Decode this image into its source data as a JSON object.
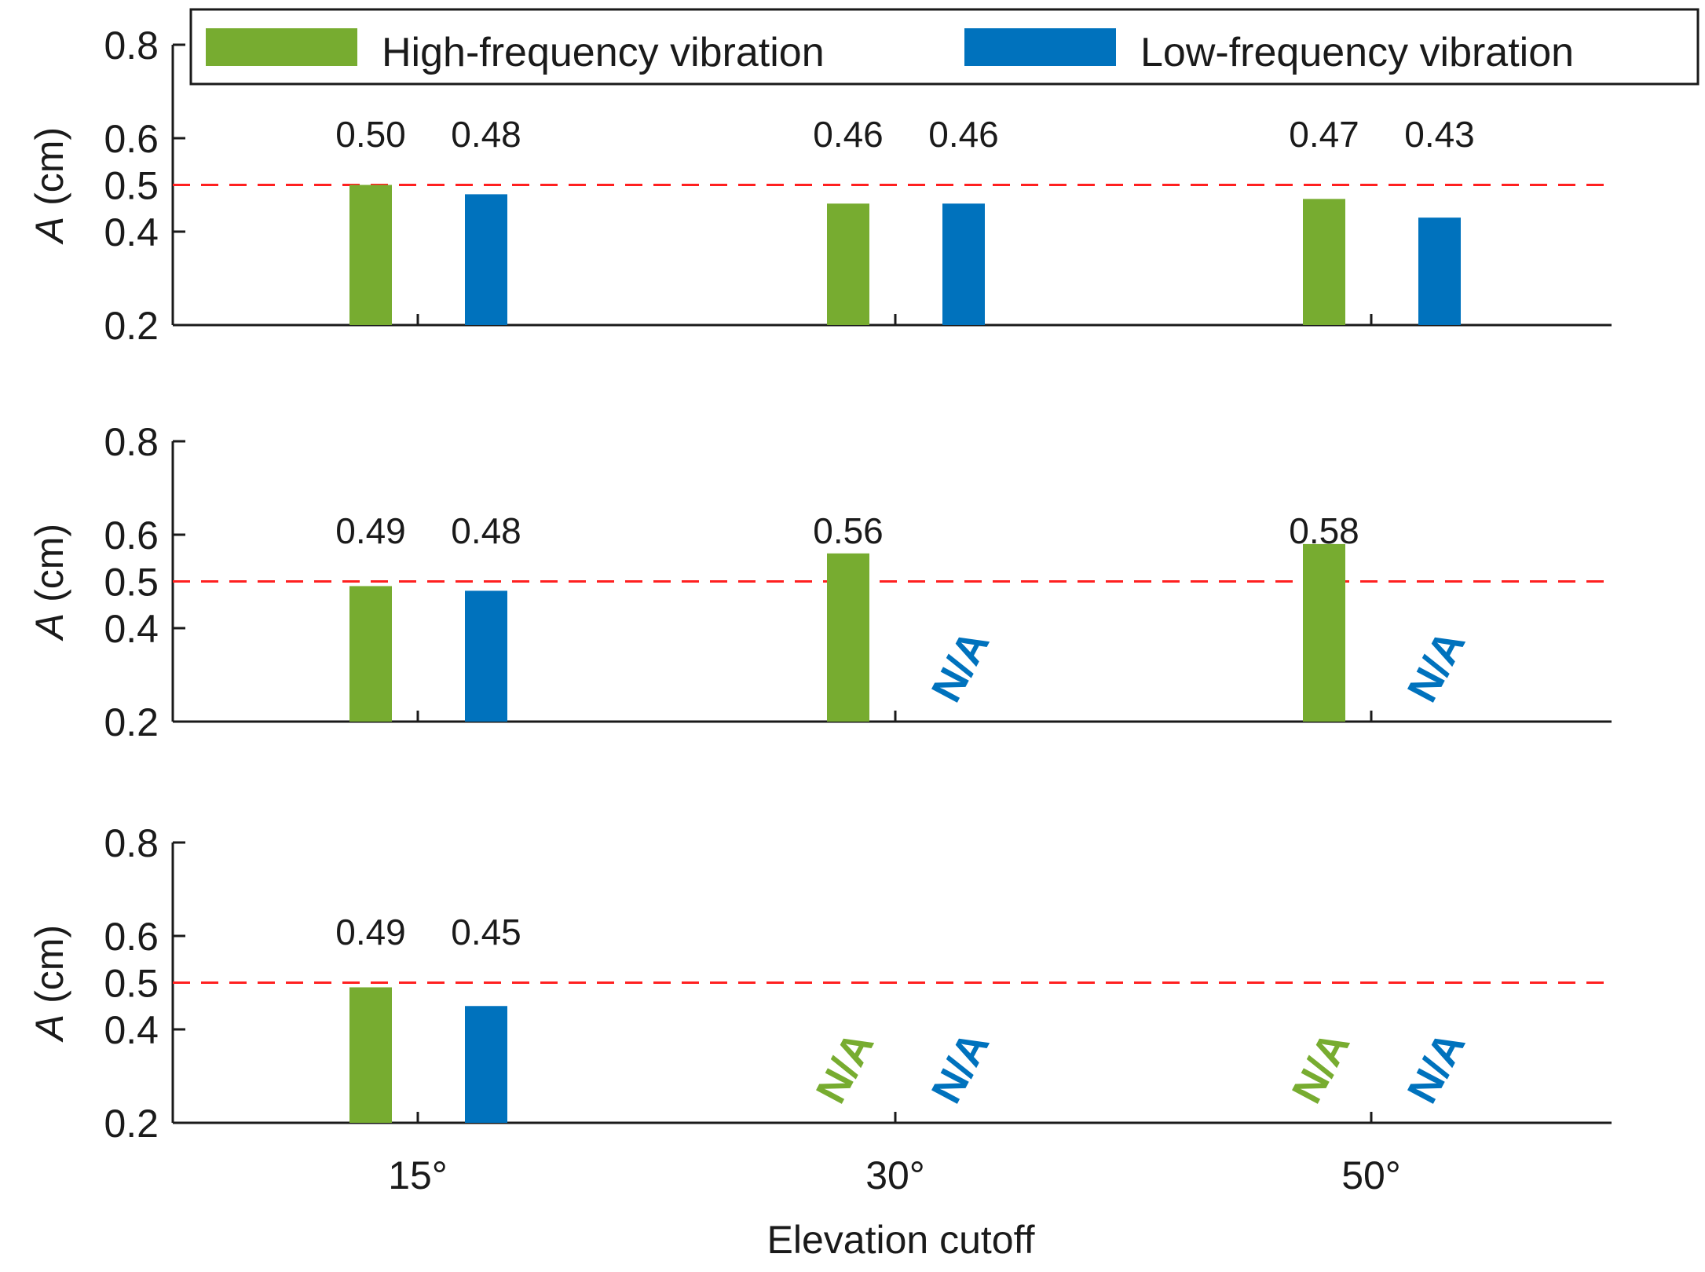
{
  "chart_data": {
    "type": "bar",
    "categories": [
      "15°",
      "30°",
      "50°"
    ],
    "xlabel": "Elevation cutoff",
    "ylabel": "A (cm)",
    "ylim": [
      0.2,
      0.8
    ],
    "yticks": [
      "0.2",
      "0.4",
      "0.5",
      "0.6",
      "0.8"
    ],
    "reference_line": 0.5,
    "legend": {
      "placement": "top",
      "entries": [
        {
          "name": "High-frequency vibration",
          "color": "#77ac30"
        },
        {
          "name": "Low-frequency vibration",
          "color": "#0072bd"
        }
      ]
    },
    "colors": {
      "high": "#77ac30",
      "low": "#0072bd",
      "reference": "#ff2020"
    },
    "na_text": "N/A",
    "panels": [
      {
        "series": [
          {
            "name": "High-frequency vibration",
            "values": [
              0.5,
              0.46,
              0.47
            ],
            "labels": [
              "0.50",
              "0.46",
              "0.47"
            ]
          },
          {
            "name": "Low-frequency vibration",
            "values": [
              0.48,
              0.46,
              0.43
            ],
            "labels": [
              "0.48",
              "0.46",
              "0.43"
            ]
          }
        ]
      },
      {
        "series": [
          {
            "name": "High-frequency vibration",
            "values": [
              0.49,
              0.56,
              0.58
            ],
            "labels": [
              "0.49",
              "0.56",
              "0.58"
            ]
          },
          {
            "name": "Low-frequency vibration",
            "values": [
              0.48,
              null,
              null
            ],
            "labels": [
              "0.48",
              null,
              null
            ]
          }
        ]
      },
      {
        "series": [
          {
            "name": "High-frequency vibration",
            "values": [
              0.49,
              null,
              null
            ],
            "labels": [
              "0.49",
              null,
              null
            ]
          },
          {
            "name": "Low-frequency vibration",
            "values": [
              0.45,
              null,
              null
            ],
            "labels": [
              "0.45",
              null,
              null
            ]
          }
        ]
      }
    ]
  }
}
